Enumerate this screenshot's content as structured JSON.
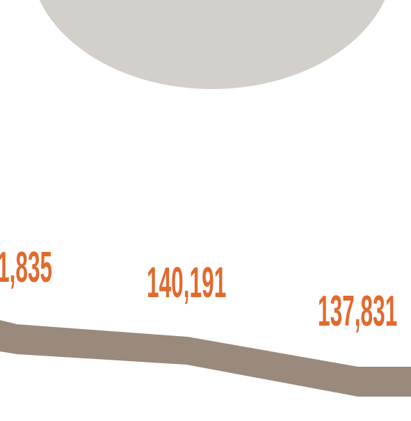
{
  "labels": [
    "1,835",
    "140,191",
    "137,831"
  ]
}
